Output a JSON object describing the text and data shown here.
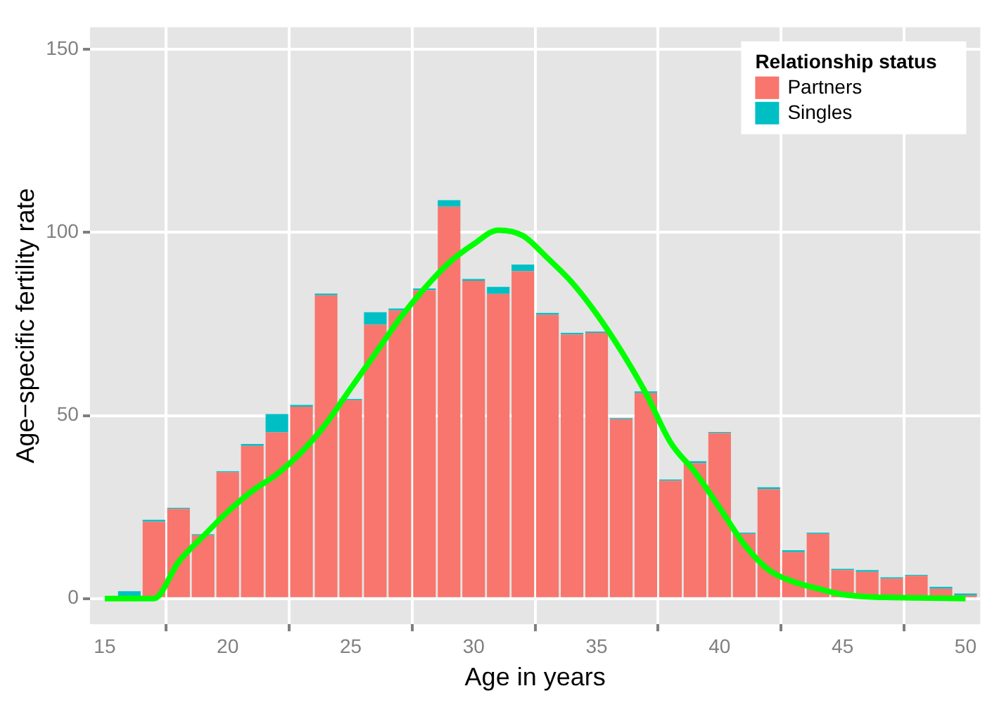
{
  "chart_data": {
    "type": "bar",
    "xlabel": "Age in years",
    "ylabel": "Age−specific fertility rate",
    "legend_title": "Relationship status",
    "x": [
      15,
      16,
      17,
      18,
      19,
      20,
      21,
      22,
      23,
      24,
      25,
      26,
      27,
      28,
      29,
      30,
      31,
      32,
      33,
      34,
      35,
      36,
      37,
      38,
      39,
      40,
      41,
      42,
      43,
      44,
      45,
      46,
      47,
      48,
      49,
      50
    ],
    "stacked": true,
    "series": [
      {
        "name": "Partners",
        "color": "#f8766d",
        "values": [
          0,
          0,
          21,
          24.5,
          17.3,
          34.5,
          41.7,
          45.4,
          52.4,
          82.8,
          54.2,
          74.8,
          78.7,
          84.2,
          107,
          86.8,
          83.2,
          89.4,
          77.5,
          72.1,
          72.6,
          49,
          56.1,
          32.2,
          37,
          45.2,
          17.7,
          29.9,
          12.7,
          17.7,
          7.8,
          7.3,
          5.5,
          6.2,
          2.7,
          0.9
        ]
      },
      {
        "name": "Singles",
        "color": "#00bfc4",
        "values": [
          null,
          2,
          0.5,
          0.3,
          0.3,
          0.3,
          0.5,
          5,
          0.5,
          0.5,
          0.3,
          3.4,
          0.5,
          0.5,
          1.8,
          0.5,
          1.9,
          1.8,
          0.5,
          0.5,
          0.3,
          0.3,
          0.5,
          0.3,
          0.5,
          0.3,
          0.3,
          0.5,
          0.5,
          0.3,
          0.3,
          0.5,
          0.3,
          0.3,
          0.5,
          0.5
        ]
      },
      {
        "type": "line",
        "color": "#00ff00",
        "values": [
          0,
          0,
          0,
          10,
          17,
          23.7,
          29.4,
          34,
          40,
          47.8,
          57.4,
          66.9,
          76.5,
          84.7,
          91.7,
          96.8,
          100.6,
          99.1,
          93,
          86.3,
          77.7,
          67.6,
          56.1,
          42.7,
          34.5,
          24.8,
          14.8,
          7.8,
          4.6,
          2.7,
          1.1,
          0.5,
          0.3,
          0.2,
          0.1,
          0
        ]
      }
    ],
    "xlim": [
      14.4,
      50.6
    ],
    "xticks": [
      15,
      20,
      25,
      30,
      35,
      40,
      45,
      50
    ],
    "ylim": [
      -7,
      156
    ],
    "yticks": [
      0,
      50,
      100,
      150
    ],
    "grid": true,
    "legend": "top right",
    "marker": "none",
    "line_style": "solid"
  }
}
